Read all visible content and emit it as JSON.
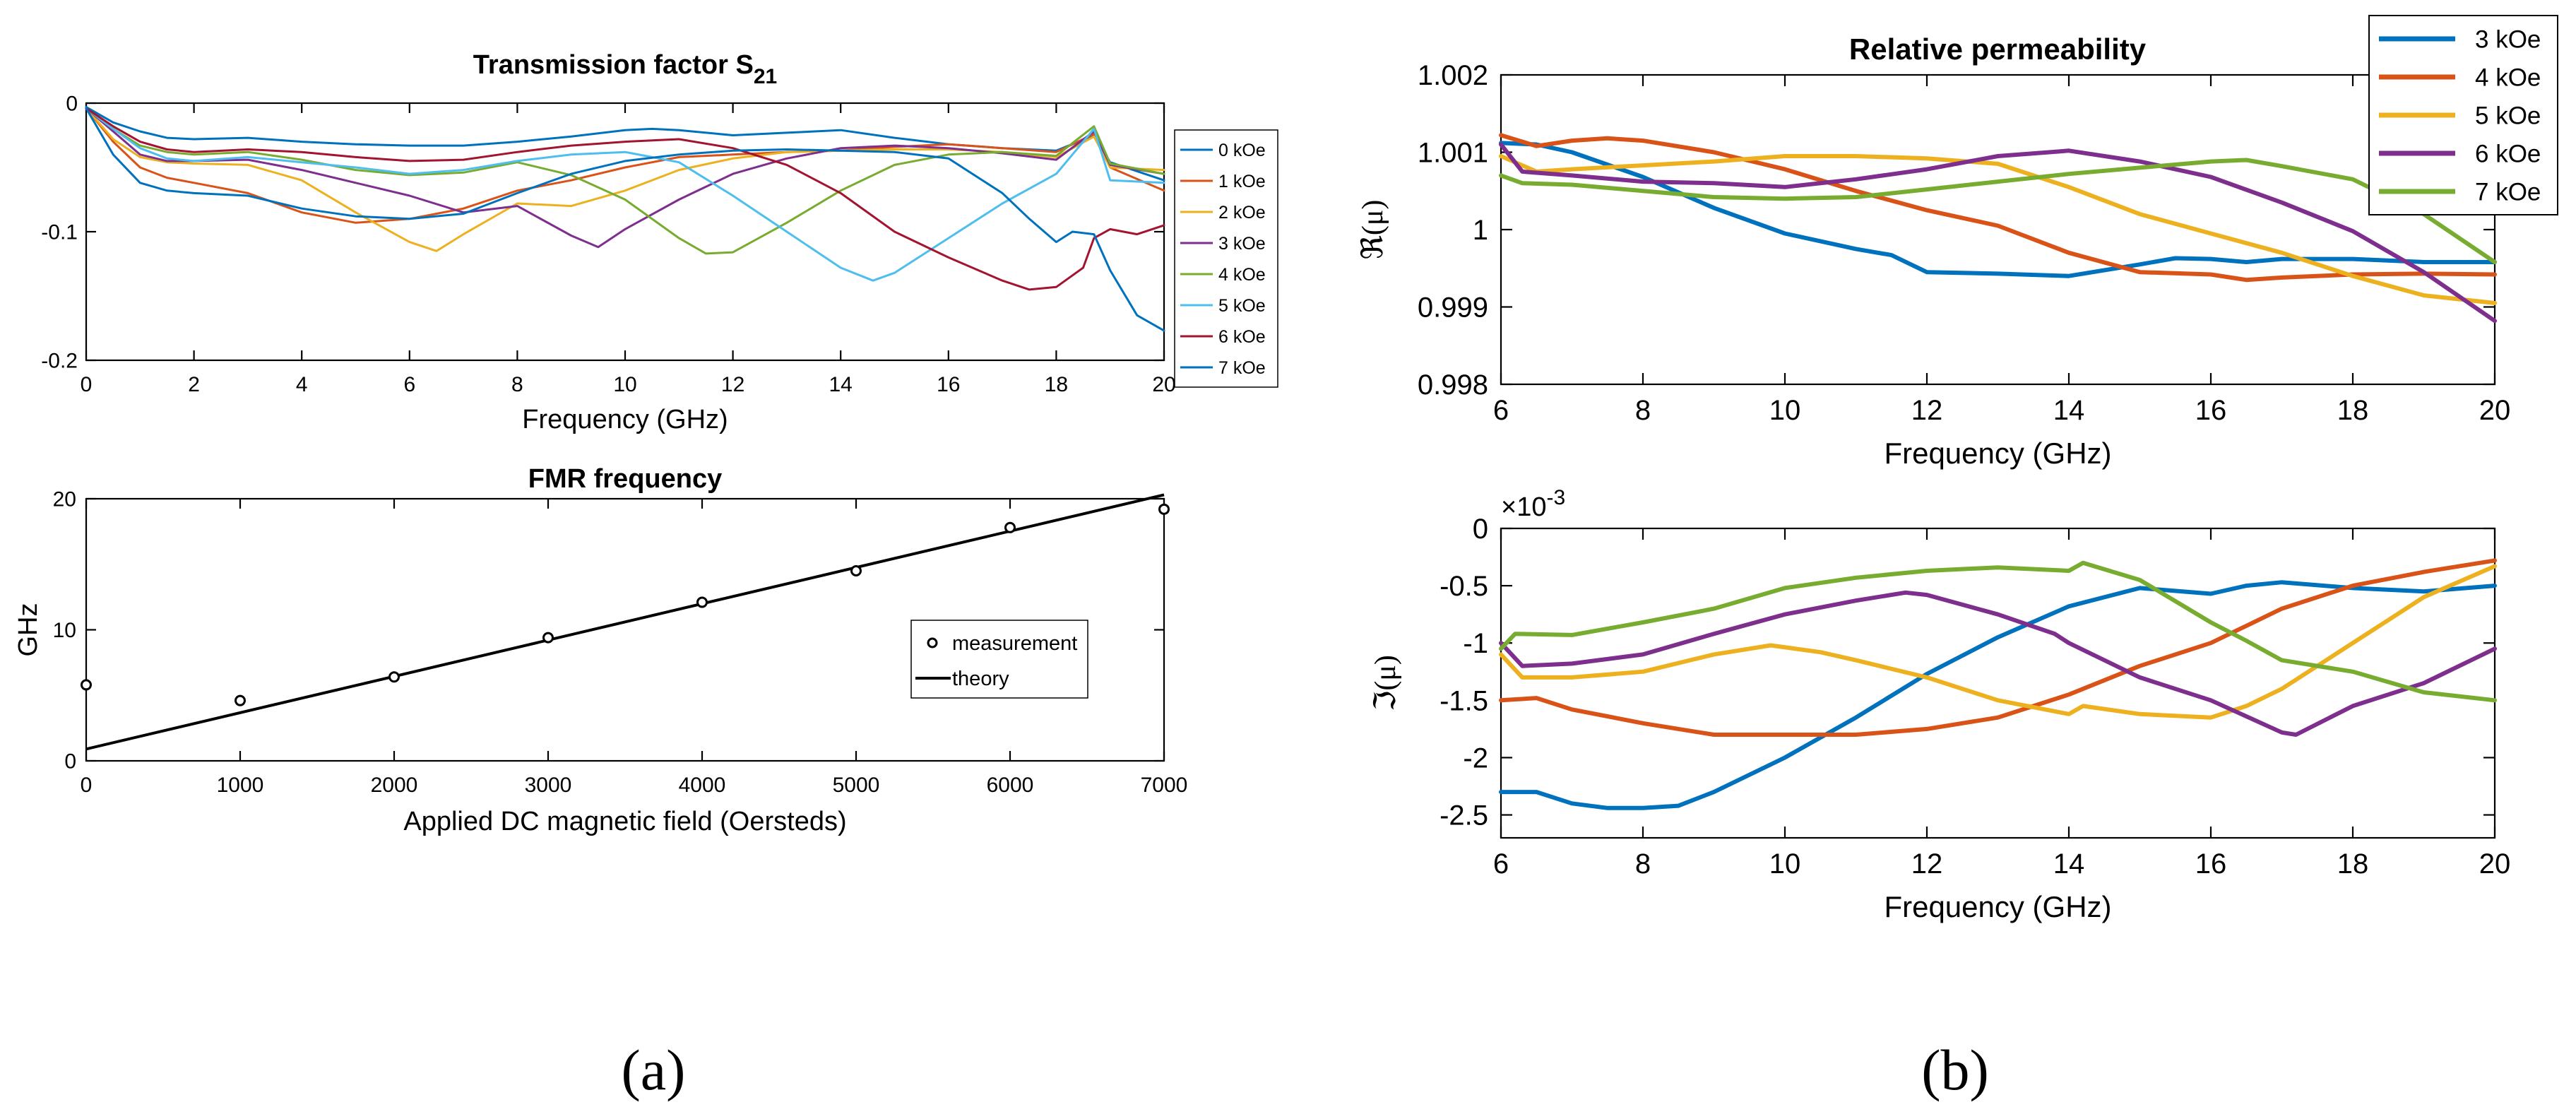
{
  "panel_labels": {
    "a": "(a)",
    "b": "(b)"
  },
  "colors": {
    "kOe0": "#0072BD",
    "kOe1": "#D95319",
    "kOe2": "#EDB120",
    "kOe3": "#7E2F8E",
    "kOe4": "#77AC30",
    "kOe5": "#4DBEEE",
    "kOe6": "#A2142F",
    "kOe7": "#0072BD",
    "axis": "#000000"
  },
  "chart_data": [
    {
      "id": "s21",
      "type": "line",
      "title": "Transmission factor S",
      "title_sub": "21",
      "xlabel": "Frequency (GHz)",
      "ylabel": "",
      "xlim": [
        0,
        20
      ],
      "ylim": [
        -0.2,
        0
      ],
      "xticks": [
        0,
        2,
        4,
        6,
        8,
        10,
        12,
        14,
        16,
        18,
        20
      ],
      "yticks": [
        -0.2,
        -0.1,
        0
      ],
      "ytick_labels": [
        "-0.2",
        "-0.1",
        "0"
      ],
      "legend": "right",
      "series": [
        {
          "name": "0 kOe",
          "color": "#0072BD",
          "x": [
            0,
            0.5,
            1,
            1.5,
            2,
            3,
            4,
            5,
            6,
            7,
            8,
            9,
            10,
            10.5,
            11,
            12,
            13,
            14,
            15,
            16,
            17,
            18,
            18.7,
            19,
            20
          ],
          "y": [
            -0.003,
            -0.015,
            -0.022,
            -0.027,
            -0.028,
            -0.027,
            -0.03,
            -0.032,
            -0.033,
            -0.033,
            -0.03,
            -0.026,
            -0.021,
            -0.02,
            -0.021,
            -0.025,
            -0.023,
            -0.021,
            -0.027,
            -0.032,
            -0.035,
            -0.037,
            -0.025,
            -0.046,
            -0.06
          ]
        },
        {
          "name": "1 kOe",
          "color": "#D95319",
          "x": [
            0,
            0.5,
            1,
            1.5,
            2,
            3,
            4,
            5,
            6,
            7,
            8,
            9,
            10,
            11,
            12,
            13,
            14,
            15,
            16,
            17,
            18,
            18.7,
            19,
            20
          ],
          "y": [
            -0.004,
            -0.03,
            -0.05,
            -0.058,
            -0.062,
            -0.07,
            -0.085,
            -0.093,
            -0.09,
            -0.082,
            -0.068,
            -0.06,
            -0.05,
            -0.042,
            -0.04,
            -0.038,
            -0.037,
            -0.034,
            -0.032,
            -0.035,
            -0.038,
            -0.024,
            -0.05,
            -0.068
          ]
        },
        {
          "name": "2 kOe",
          "color": "#EDB120",
          "x": [
            0,
            0.5,
            1,
            1.5,
            2,
            3,
            4,
            5,
            6,
            6.5,
            7,
            8,
            9,
            10,
            11,
            12,
            13,
            14,
            15,
            16,
            17,
            18,
            18.7,
            19,
            20
          ],
          "y": [
            -0.004,
            -0.028,
            -0.042,
            -0.046,
            -0.047,
            -0.048,
            -0.06,
            -0.085,
            -0.108,
            -0.115,
            -0.102,
            -0.078,
            -0.08,
            -0.068,
            -0.052,
            -0.043,
            -0.038,
            -0.037,
            -0.036,
            -0.036,
            -0.038,
            -0.042,
            -0.026,
            -0.05,
            -0.052
          ]
        },
        {
          "name": "3 kOe",
          "color": "#7E2F8E",
          "x": [
            0,
            0.5,
            1,
            1.5,
            2,
            3,
            4,
            5,
            6,
            7,
            8,
            9,
            9.5,
            10,
            11,
            12,
            13,
            14,
            15,
            16,
            17,
            18,
            18.7,
            19,
            20
          ],
          "y": [
            -0.004,
            -0.022,
            -0.04,
            -0.045,
            -0.045,
            -0.044,
            -0.052,
            -0.062,
            -0.072,
            -0.085,
            -0.08,
            -0.103,
            -0.112,
            -0.098,
            -0.075,
            -0.055,
            -0.043,
            -0.035,
            -0.033,
            -0.035,
            -0.039,
            -0.044,
            -0.022,
            -0.048,
            -0.055
          ]
        },
        {
          "name": "4 kOe",
          "color": "#77AC30",
          "x": [
            0,
            0.5,
            1,
            1.5,
            2,
            3,
            4,
            5,
            6,
            7,
            8,
            9,
            10,
            11,
            11.5,
            12,
            13,
            14,
            15,
            16,
            17,
            18,
            18.7,
            19,
            20
          ],
          "y": [
            -0.004,
            -0.02,
            -0.033,
            -0.038,
            -0.04,
            -0.038,
            -0.044,
            -0.052,
            -0.056,
            -0.054,
            -0.046,
            -0.056,
            -0.075,
            -0.105,
            -0.117,
            -0.116,
            -0.093,
            -0.068,
            -0.048,
            -0.04,
            -0.038,
            -0.041,
            -0.018,
            -0.047,
            -0.055
          ]
        },
        {
          "name": "5 kOe",
          "color": "#4DBEEE",
          "x": [
            0,
            0.5,
            1,
            1.5,
            2,
            3,
            4,
            5,
            6,
            7,
            8,
            9,
            10,
            11,
            12,
            13,
            14,
            14.6,
            15,
            16,
            17,
            18,
            18.7,
            19,
            20
          ],
          "y": [
            -0.004,
            -0.02,
            -0.035,
            -0.043,
            -0.045,
            -0.042,
            -0.046,
            -0.05,
            -0.055,
            -0.052,
            -0.045,
            -0.04,
            -0.038,
            -0.046,
            -0.072,
            -0.1,
            -0.128,
            -0.138,
            -0.132,
            -0.105,
            -0.078,
            -0.055,
            -0.02,
            -0.06,
            -0.062
          ]
        },
        {
          "name": "6 kOe",
          "color": "#A2142F",
          "x": [
            0,
            0.5,
            1,
            1.5,
            2,
            3,
            4,
            5,
            6,
            7,
            8,
            9,
            10,
            11,
            12,
            13,
            14,
            15,
            16,
            17,
            17.5,
            18,
            18.5,
            18.7,
            19,
            19.5,
            20
          ],
          "y": [
            -0.004,
            -0.018,
            -0.03,
            -0.036,
            -0.038,
            -0.036,
            -0.038,
            -0.042,
            -0.045,
            -0.044,
            -0.038,
            -0.033,
            -0.03,
            -0.028,
            -0.035,
            -0.048,
            -0.07,
            -0.1,
            -0.12,
            -0.138,
            -0.145,
            -0.143,
            -0.128,
            -0.105,
            -0.098,
            -0.102,
            -0.095
          ]
        },
        {
          "name": "7 kOe",
          "color": "#0072BD",
          "x": [
            0,
            0.5,
            1,
            1.5,
            2,
            3,
            4,
            5,
            6,
            7,
            8,
            9,
            10,
            11,
            12,
            13,
            14,
            15,
            16,
            17,
            17.5,
            18,
            18.3,
            18.7,
            19,
            19.5,
            20
          ],
          "y": [
            -0.004,
            -0.04,
            -0.062,
            -0.068,
            -0.07,
            -0.072,
            -0.082,
            -0.088,
            -0.09,
            -0.086,
            -0.07,
            -0.055,
            -0.045,
            -0.04,
            -0.037,
            -0.036,
            -0.037,
            -0.038,
            -0.043,
            -0.07,
            -0.09,
            -0.108,
            -0.1,
            -0.102,
            -0.13,
            -0.165,
            -0.177
          ]
        }
      ]
    },
    {
      "id": "fmr",
      "type": "scatter",
      "title": "FMR frequency",
      "xlabel": "Applied DC magnetic field (Oersteds)",
      "ylabel": "GHz",
      "xlim": [
        0,
        7000
      ],
      "ylim": [
        0,
        20
      ],
      "xticks": [
        0,
        1000,
        2000,
        3000,
        4000,
        5000,
        6000,
        7000
      ],
      "yticks": [
        0,
        10,
        20
      ],
      "legend": "inside-right",
      "measurement": {
        "name": "measurement",
        "x": [
          0,
          1000,
          2000,
          3000,
          4000,
          5000,
          6000,
          7000
        ],
        "y": [
          5.8,
          4.6,
          6.4,
          9.4,
          12.1,
          14.5,
          17.8,
          19.2
        ]
      },
      "theory": {
        "name": "theory",
        "x": [
          0,
          7000
        ],
        "y": [
          0.9,
          20.3
        ]
      }
    },
    {
      "id": "re",
      "type": "line",
      "title": "Relative permeability",
      "xlabel": "Frequency (GHz)",
      "ylabel": "ℜ(μ)",
      "xlim": [
        6,
        20
      ],
      "ylim": [
        0.998,
        1.002
      ],
      "xticks": [
        6,
        8,
        10,
        12,
        14,
        16,
        18,
        20
      ],
      "yticks": [
        0.998,
        0.999,
        1,
        1.001,
        1.002
      ],
      "ytick_labels": [
        "0.998",
        "0.999",
        "1",
        "1.001",
        "1.002"
      ],
      "legend": "top-right",
      "series": [
        {
          "name": "3 kOe",
          "color": "#0072BD",
          "x": [
            6,
            6.5,
            7,
            8,
            9,
            10,
            11,
            11.5,
            12,
            13,
            14,
            15,
            15.5,
            16,
            16.5,
            17,
            18,
            19,
            20
          ],
          "y": [
            1.00112,
            1.0011,
            1.001,
            1.00068,
            1.00028,
            0.99995,
            0.99975,
            0.99967,
            0.99945,
            0.99943,
            0.9994,
            0.99955,
            0.99963,
            0.99962,
            0.99958,
            0.99962,
            0.99962,
            0.99958,
            0.99958
          ]
        },
        {
          "name": "4 kOe",
          "color": "#D95319",
          "x": [
            6,
            6.5,
            7,
            7.5,
            8,
            9,
            10,
            11,
            12,
            13,
            14,
            15,
            16,
            16.5,
            17,
            18,
            19,
            20
          ],
          "y": [
            1.00122,
            1.00108,
            1.00115,
            1.00118,
            1.00115,
            1.001,
            1.00078,
            1.0005,
            1.00025,
            1.00005,
            0.9997,
            0.99945,
            0.99942,
            0.99935,
            0.99938,
            0.99942,
            0.99943,
            0.99942
          ]
        },
        {
          "name": "5 kOe",
          "color": "#EDB120",
          "x": [
            6,
            6.5,
            7,
            8,
            9,
            10,
            11,
            12,
            13,
            14,
            15,
            16,
            17,
            18,
            19,
            20
          ],
          "y": [
            1.00095,
            1.00075,
            1.00078,
            1.00083,
            1.00088,
            1.00095,
            1.00095,
            1.00092,
            1.00085,
            1.00055,
            1.0002,
            0.99995,
            0.9997,
            0.9994,
            0.99915,
            0.99905
          ]
        },
        {
          "name": "6 kOe",
          "color": "#7E2F8E",
          "x": [
            6,
            6.3,
            7,
            8,
            9,
            10,
            11,
            12,
            13,
            14,
            15,
            16,
            17,
            18,
            19,
            20
          ],
          "y": [
            1.0011,
            1.00075,
            1.0007,
            1.00062,
            1.0006,
            1.00055,
            1.00065,
            1.00078,
            1.00095,
            1.00102,
            1.00088,
            1.00068,
            1.00035,
            0.99998,
            0.99945,
            0.99882
          ]
        },
        {
          "name": "7 kOe",
          "color": "#77AC30",
          "x": [
            6,
            6.3,
            7,
            8,
            9,
            10,
            11,
            12,
            13,
            14,
            15,
            16,
            16.5,
            17,
            18,
            19,
            20
          ],
          "y": [
            1.0007,
            1.0006,
            1.00058,
            1.0005,
            1.00042,
            1.0004,
            1.00042,
            1.00052,
            1.00062,
            1.00072,
            1.0008,
            1.00088,
            1.0009,
            1.00082,
            1.00065,
            1.0002,
            0.99958
          ]
        }
      ]
    },
    {
      "id": "im",
      "type": "line",
      "title": "",
      "xlabel": "Frequency (GHz)",
      "ylabel": "ℑ(μ)",
      "multiplier": "×10",
      "multiplier_exp": "-3",
      "xlim": [
        6,
        20
      ],
      "ylim": [
        -2.7,
        0
      ],
      "xticks": [
        6,
        8,
        10,
        12,
        14,
        16,
        18,
        20
      ],
      "yticks": [
        -2.5,
        -2,
        -1.5,
        -1,
        -0.5,
        0
      ],
      "ytick_labels": [
        "-2.5",
        "-2",
        "-1.5",
        "-1",
        "-0.5",
        "0"
      ],
      "legend": "none",
      "series": [
        {
          "name": "3 kOe",
          "color": "#0072BD",
          "x": [
            6,
            6.5,
            7,
            7.5,
            8,
            8.5,
            9,
            10,
            11,
            12,
            13,
            14,
            15,
            16,
            16.5,
            17,
            18,
            19,
            20
          ],
          "y": [
            -2.3,
            -2.3,
            -2.4,
            -2.44,
            -2.44,
            -2.42,
            -2.3,
            -2.0,
            -1.65,
            -1.27,
            -0.95,
            -0.68,
            -0.52,
            -0.57,
            -0.5,
            -0.47,
            -0.52,
            -0.55,
            -0.5
          ]
        },
        {
          "name": "4 kOe",
          "color": "#D95319",
          "x": [
            6,
            6.5,
            7,
            8,
            9,
            10,
            11,
            12,
            13,
            14,
            15,
            16,
            16.5,
            17,
            18,
            19,
            20
          ],
          "y": [
            -1.5,
            -1.48,
            -1.58,
            -1.7,
            -1.8,
            -1.8,
            -1.8,
            -1.75,
            -1.65,
            -1.45,
            -1.2,
            -1.0,
            -0.85,
            -0.7,
            -0.5,
            -0.38,
            -0.28
          ]
        },
        {
          "name": "5 kOe",
          "color": "#EDB120",
          "x": [
            6,
            6.3,
            7,
            8,
            9,
            9.8,
            10.5,
            11,
            12,
            13,
            14,
            14.2,
            15,
            16,
            16.5,
            17,
            18,
            19,
            20
          ],
          "y": [
            -1.1,
            -1.3,
            -1.3,
            -1.25,
            -1.1,
            -1.02,
            -1.08,
            -1.15,
            -1.3,
            -1.5,
            -1.62,
            -1.55,
            -1.62,
            -1.65,
            -1.55,
            -1.4,
            -1.0,
            -0.6,
            -0.33
          ]
        },
        {
          "name": "6 kOe",
          "color": "#7E2F8E",
          "x": [
            6,
            6.3,
            7,
            8,
            9,
            10,
            11,
            11.7,
            12,
            13,
            13.8,
            14,
            14.5,
            15,
            16,
            17,
            17.2,
            18,
            19,
            20
          ],
          "y": [
            -1.0,
            -1.2,
            -1.18,
            -1.1,
            -0.92,
            -0.75,
            -0.63,
            -0.56,
            -0.58,
            -0.75,
            -0.92,
            -1.0,
            -1.15,
            -1.3,
            -1.5,
            -1.78,
            -1.8,
            -1.55,
            -1.35,
            -1.05
          ]
        },
        {
          "name": "7 kOe",
          "color": "#77AC30",
          "x": [
            6,
            6.2,
            7,
            8,
            9,
            10,
            11,
            12,
            13,
            14,
            14.2,
            15,
            16,
            16.5,
            17,
            18,
            19,
            20
          ],
          "y": [
            -1.05,
            -0.92,
            -0.93,
            -0.82,
            -0.7,
            -0.52,
            -0.43,
            -0.37,
            -0.34,
            -0.37,
            -0.3,
            -0.45,
            -0.82,
            -0.98,
            -1.15,
            -1.25,
            -1.43,
            -1.5
          ]
        }
      ]
    }
  ]
}
